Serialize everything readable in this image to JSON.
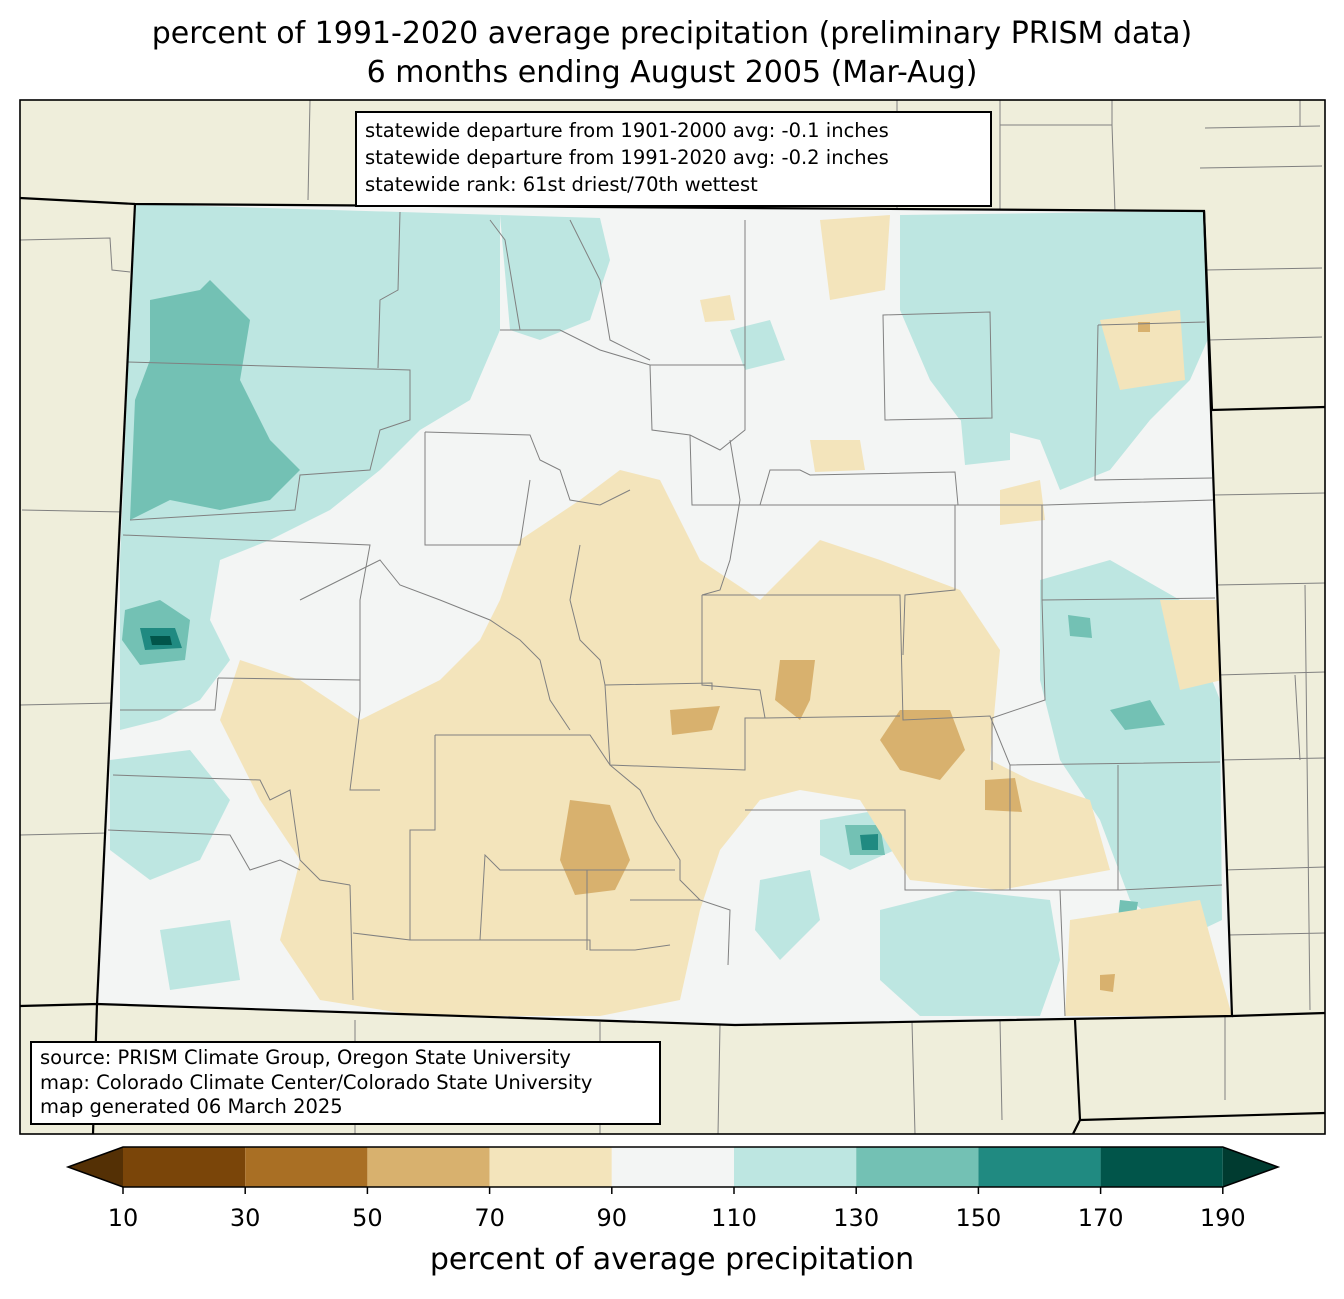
{
  "title": {
    "line1": "percent of 1991-2020 average precipitation (preliminary PRISM data)",
    "line2": "6 months ending August 2005 (Mar-Aug)"
  },
  "stats": {
    "line1": "statewide departure from 1901-2000 avg: -0.1 inches",
    "line2": "statewide departure from 1991-2020 avg: -0.2 inches",
    "line3": "statewide rank: 61st driest/70th wettest"
  },
  "credits": {
    "line1": "source: PRISM Climate Group, Oregon State University",
    "line2": "map: Colorado Climate Center/Colorado State University",
    "line3": "map generated 06 March 2025"
  },
  "colorbar": {
    "label": "percent of average precipitation",
    "ticks": [
      "10",
      "30",
      "50",
      "70",
      "90",
      "110",
      "130",
      "150",
      "170",
      "190"
    ],
    "colors": {
      "under": "#543005",
      "b10_30": "#7a4509",
      "b30_50": "#a96f24",
      "b50_70": "#d8b16e",
      "b70_90": "#f3e4bb",
      "b90_110": "#f3f5f4",
      "b110_130": "#bde6e1",
      "b130_150": "#73c1b4",
      "b150_170": "#208a81",
      "b170_190": "#01554a",
      "over": "#003b30"
    }
  },
  "map_colors": {
    "land": "#efeedb",
    "state_fill": "#f3f5f4",
    "county_line": "#808080",
    "state_line": "#000000"
  }
}
